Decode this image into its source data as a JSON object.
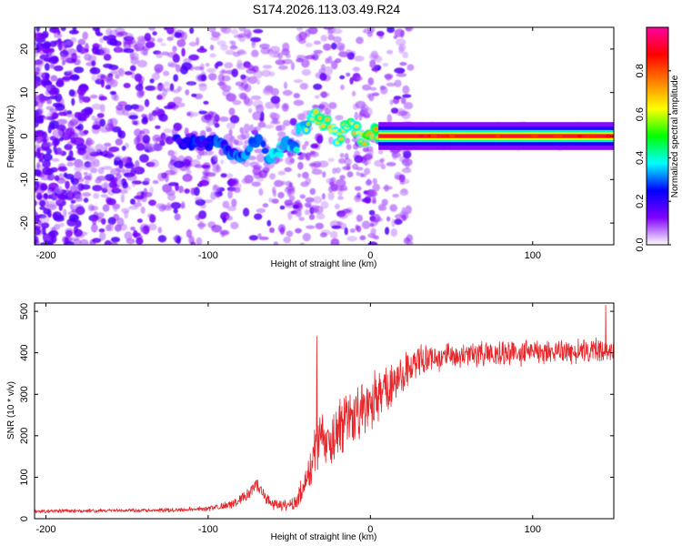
{
  "title": "S174.2026.113.03.49.R24",
  "chart_data": [
    {
      "type": "heatmap",
      "xlabel": "Height of straight line (km)",
      "ylabel": "Frequency (Hz)",
      "xlim": [
        -207,
        150
      ],
      "ylim": [
        -25,
        25
      ],
      "xticks": [
        -200,
        -100,
        0,
        100
      ],
      "yticks": [
        -20,
        -10,
        0,
        10,
        20
      ],
      "colorbar": {
        "label": "Normalized spectral amplitude",
        "range": [
          0,
          1
        ],
        "ticks": [
          "0.0",
          "0.2",
          "0.4",
          "0.6",
          "0.8"
        ],
        "tick_values": [
          0,
          0.2,
          0.4,
          0.6,
          0.8
        ],
        "colors": [
          "#ffffff",
          "#8000ff",
          "#0000ff",
          "#00ffff",
          "#00ff00",
          "#ffff00",
          "#ff8000",
          "#ff0000",
          "#ff00a0"
        ]
      },
      "features": {
        "ridge_frequency_hz": 0,
        "ridge_start_km": -100,
        "steady_line_from_km": 5,
        "peak_amplitude": 0.95
      }
    },
    {
      "type": "line",
      "xlabel": "Height of straight line (km)",
      "ylabel": "SNR (10 * v/v)",
      "xlim": [
        -207,
        150
      ],
      "ylim": [
        0,
        520
      ],
      "xticks": [
        -200,
        -100,
        0,
        100
      ],
      "yticks": [
        0,
        100,
        200,
        300,
        400,
        500
      ],
      "color": "#e8262a",
      "series": [
        {
          "name": "SNR",
          "x": [
            -207,
            -180,
            -150,
            -120,
            -100,
            -85,
            -75,
            -70,
            -65,
            -60,
            -50,
            -45,
            -40,
            -35,
            -30,
            -25,
            -20,
            -15,
            -10,
            -5,
            0,
            10,
            20,
            25,
            30,
            40,
            50,
            60,
            80,
            100,
            120,
            140,
            150
          ],
          "y": [
            18,
            19,
            20,
            21,
            24,
            35,
            60,
            80,
            55,
            35,
            30,
            45,
            90,
            150,
            200,
            180,
            210,
            230,
            250,
            260,
            280,
            320,
            350,
            360,
            380,
            385,
            390,
            395,
            398,
            400,
            402,
            405,
            400
          ],
          "noise": [
            5,
            5,
            5,
            6,
            8,
            12,
            20,
            25,
            20,
            15,
            15,
            25,
            45,
            70,
            90,
            80,
            85,
            85,
            85,
            80,
            75,
            65,
            55,
            50,
            45,
            35,
            35,
            35,
            35,
            35,
            35,
            35,
            35
          ]
        }
      ],
      "notes": {
        "spike_1": {
          "x": -33,
          "y": 440
        },
        "spike_2": {
          "x": 145,
          "y": 515
        }
      }
    }
  ]
}
